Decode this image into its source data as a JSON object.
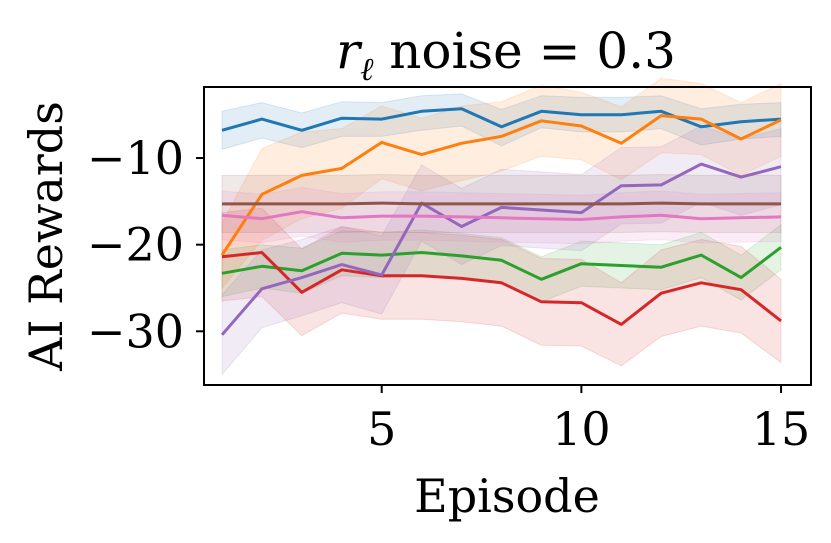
{
  "chart_data": {
    "type": "line",
    "title": {
      "symbol": "r",
      "subscript": "ℓ",
      "text": " noise = 0.3"
    },
    "xlabel": "Episode",
    "ylabel": "AI Rewards",
    "xlim": [
      0.55,
      15.75
    ],
    "ylim": [
      -36.2,
      -1.8
    ],
    "xticks": [
      5,
      10,
      15
    ],
    "xtick_labels": [
      "5",
      "10",
      "15"
    ],
    "yticks": [
      -10,
      -20,
      -30
    ],
    "ytick_labels": [
      "−10",
      "−20",
      "−30"
    ],
    "grid": false,
    "legend": "none",
    "x": [
      1,
      2,
      3,
      4,
      5,
      6,
      7,
      8,
      9,
      10,
      11,
      12,
      13,
      14,
      15
    ],
    "series": [
      {
        "color": "#1f77b4",
        "values": [
          -6.8,
          -5.5,
          -6.8,
          -5.4,
          -5.5,
          -4.6,
          -4.3,
          -6.4,
          -4.6,
          -5.0,
          -5.0,
          -4.6,
          -6.4,
          -5.8,
          -5.5
        ],
        "lower": [
          -9.0,
          -7.7,
          -8.8,
          -7.5,
          -7.5,
          -6.8,
          -6.3,
          -8.6,
          -6.5,
          -7.0,
          -7.0,
          -6.6,
          -8.5,
          -7.8,
          -7.5
        ],
        "upper": [
          -4.6,
          -3.6,
          -4.8,
          -3.5,
          -3.6,
          -2.8,
          -2.6,
          -4.4,
          -2.8,
          -3.0,
          -3.0,
          -2.8,
          -4.3,
          -3.8,
          -3.6
        ]
      },
      {
        "color": "#ff7f0e",
        "values": [
          -21.2,
          -14.2,
          -12.0,
          -11.2,
          -8.2,
          -9.6,
          -8.3,
          -7.5,
          -5.7,
          -6.3,
          -8.3,
          -5.1,
          -5.5,
          -7.8,
          -5.6
        ],
        "lower": [
          -25.0,
          -19.5,
          -17.0,
          -15.8,
          -12.4,
          -13.8,
          -12.6,
          -11.5,
          -9.8,
          -10.2,
          -12.5,
          -9.4,
          -9.6,
          -12.0,
          -9.8
        ],
        "upper": [
          -17.5,
          -8.9,
          -7.0,
          -6.6,
          -4.0,
          -5.4,
          -4.0,
          -3.5,
          -1.6,
          -2.4,
          -4.1,
          -0.8,
          -1.4,
          -3.6,
          -1.4
        ]
      },
      {
        "color": "#2ca02c",
        "values": [
          -23.3,
          -22.5,
          -23.0,
          -21.0,
          -21.2,
          -20.9,
          -21.3,
          -21.8,
          -24.0,
          -22.2,
          -22.4,
          -22.6,
          -21.2,
          -23.8,
          -20.3
        ],
        "lower": [
          -26.0,
          -25.0,
          -25.6,
          -23.6,
          -23.8,
          -23.5,
          -23.9,
          -24.4,
          -26.6,
          -24.8,
          -25.0,
          -25.2,
          -23.8,
          -26.4,
          -22.9
        ],
        "upper": [
          -20.6,
          -20.0,
          -20.4,
          -18.4,
          -18.6,
          -18.3,
          -18.7,
          -19.2,
          -21.4,
          -19.6,
          -19.8,
          -20.0,
          -18.6,
          -21.2,
          -17.7
        ]
      },
      {
        "color": "#d62728",
        "values": [
          -21.4,
          -20.9,
          -25.5,
          -22.9,
          -23.6,
          -23.6,
          -23.9,
          -24.4,
          -26.6,
          -26.7,
          -29.2,
          -25.6,
          -24.4,
          -25.2,
          -28.8
        ],
        "lower": [
          -26.5,
          -26.0,
          -30.5,
          -27.9,
          -28.6,
          -28.6,
          -28.9,
          -29.4,
          -31.6,
          -31.7,
          -34.0,
          -30.6,
          -29.4,
          -30.2,
          -33.6
        ],
        "upper": [
          -16.3,
          -15.8,
          -20.5,
          -17.9,
          -18.6,
          -18.6,
          -18.9,
          -19.4,
          -21.6,
          -21.7,
          -24.4,
          -20.6,
          -19.4,
          -20.2,
          -24.0
        ]
      },
      {
        "color": "#9467bd",
        "values": [
          -30.4,
          -25.1,
          -23.8,
          -22.3,
          -23.5,
          -15.2,
          -17.9,
          -15.7,
          -16.0,
          -16.3,
          -13.2,
          -13.1,
          -10.7,
          -12.2,
          -11.0
        ],
        "lower": [
          -35.0,
          -29.6,
          -28.2,
          -26.7,
          -28.0,
          -19.6,
          -22.3,
          -20.1,
          -20.4,
          -20.7,
          -17.6,
          -17.5,
          -15.1,
          -16.6,
          -15.4
        ],
        "upper": [
          -25.8,
          -20.6,
          -19.4,
          -17.9,
          -19.0,
          -10.8,
          -13.5,
          -11.3,
          -11.6,
          -11.9,
          -8.8,
          -8.7,
          -6.3,
          -7.8,
          -6.6
        ]
      },
      {
        "color": "#8c564b",
        "values": [
          -15.3,
          -15.3,
          -15.3,
          -15.3,
          -15.2,
          -15.3,
          -15.3,
          -15.3,
          -15.3,
          -15.3,
          -15.3,
          -15.2,
          -15.3,
          -15.3,
          -15.3
        ],
        "lower": [
          -18.6,
          -18.6,
          -18.6,
          -18.6,
          -18.5,
          -18.6,
          -18.6,
          -18.6,
          -18.6,
          -18.6,
          -18.6,
          -18.5,
          -18.6,
          -18.6,
          -18.6
        ],
        "upper": [
          -12.0,
          -12.0,
          -12.0,
          -12.0,
          -11.9,
          -12.0,
          -12.0,
          -12.0,
          -12.0,
          -12.0,
          -12.0,
          -11.9,
          -12.0,
          -12.0,
          -12.0
        ]
      },
      {
        "color": "#e377c2",
        "values": [
          -16.6,
          -17.0,
          -16.2,
          -16.9,
          -16.7,
          -16.7,
          -16.8,
          -16.9,
          -17.0,
          -17.1,
          -16.8,
          -16.6,
          -17.0,
          -16.9,
          -16.8
        ],
        "lower": [
          -19.4,
          -19.8,
          -19.0,
          -19.7,
          -19.5,
          -19.5,
          -19.6,
          -19.7,
          -19.8,
          -19.9,
          -19.6,
          -19.4,
          -19.8,
          -19.7,
          -19.6
        ],
        "upper": [
          -13.8,
          -14.2,
          -13.4,
          -14.1,
          -13.9,
          -13.9,
          -14.0,
          -14.1,
          -14.2,
          -14.3,
          -14.0,
          -13.8,
          -14.2,
          -14.1,
          -14.0
        ]
      }
    ]
  }
}
